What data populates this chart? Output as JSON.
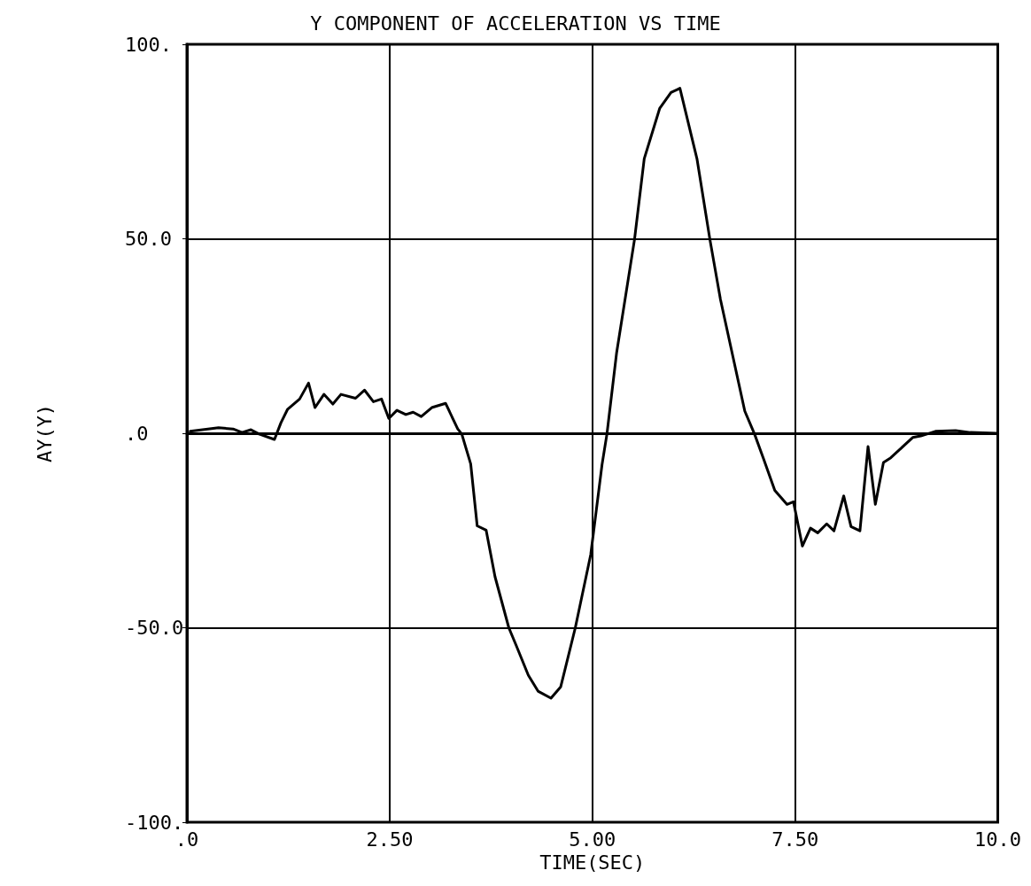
{
  "chart_data": {
    "type": "line",
    "title": "Y COMPONENT OF ACCELERATION VS TIME",
    "xlabel": "TIME(SEC)",
    "ylabel": "AY(Y)",
    "xlim": [
      0,
      10
    ],
    "ylim": [
      -100,
      100
    ],
    "xticks": [
      {
        "value": 0,
        "label": ".0"
      },
      {
        "value": 2.5,
        "label": "2.50"
      },
      {
        "value": 5,
        "label": "5.00"
      },
      {
        "value": 7.5,
        "label": "7.50"
      },
      {
        "value": 10,
        "label": "10.0"
      }
    ],
    "yticks": [
      {
        "value": -100,
        "label": "-100."
      },
      {
        "value": -50,
        "label": "-50.0"
      },
      {
        "value": 0,
        "label": ".0"
      },
      {
        "value": 50,
        "label": "50.0"
      },
      {
        "value": 100,
        "label": "100."
      }
    ],
    "grid": true,
    "marker": "none",
    "line_style": "solid",
    "series": [
      {
        "color": "#000000",
        "x": [
          0.04,
          0.39,
          0.57,
          0.68,
          0.79,
          0.89,
          1.08,
          1.16,
          1.24,
          1.39,
          1.5,
          1.58,
          1.69,
          1.8,
          1.9,
          2.08,
          2.19,
          2.3,
          2.4,
          2.49,
          2.59,
          2.7,
          2.79,
          2.89,
          3.02,
          3.19,
          3.34,
          3.39,
          3.5,
          3.58,
          3.69,
          3.8,
          3.97,
          4.06,
          4.21,
          4.33,
          4.49,
          4.61,
          4.79,
          4.98,
          5.12,
          5.18,
          5.3,
          5.52,
          5.64,
          5.83,
          5.97,
          6.08,
          6.29,
          6.45,
          6.58,
          6.88,
          7.0,
          7.11,
          7.25,
          7.4,
          7.48,
          7.59,
          7.69,
          7.78,
          7.89,
          7.98,
          8.1,
          8.19,
          8.3,
          8.4,
          8.49,
          8.59,
          8.68,
          8.95,
          9.05,
          9.23,
          9.48,
          9.66,
          9.98
        ],
        "values": [
          0.5,
          1.4,
          1.1,
          0.2,
          0.9,
          -0.2,
          -1.6,
          2.7,
          6.1,
          8.8,
          12.9,
          6.6,
          10,
          7.5,
          10,
          9,
          11.1,
          8.1,
          8.8,
          3.8,
          5.9,
          4.8,
          5.4,
          4.3,
          6.6,
          7.7,
          1.1,
          -0.2,
          -7.9,
          -23.8,
          -24.9,
          -36.9,
          -50,
          -54.5,
          -62.2,
          -66.3,
          -68.1,
          -65.2,
          -50,
          -31.2,
          -8,
          -0.2,
          20.8,
          49.8,
          70.6,
          83.5,
          87.6,
          88.7,
          70.6,
          49.8,
          34.4,
          5.7,
          -0.2,
          -6.5,
          -14.7,
          -18.3,
          -17.6,
          -29,
          -24.4,
          -25.6,
          -23.3,
          -25.1,
          -16.1,
          -24,
          -25.1,
          -3.4,
          -18.3,
          -7.5,
          -6.3,
          -1.1,
          -0.7,
          0.5,
          0.7,
          0.2,
          0
        ]
      }
    ]
  }
}
